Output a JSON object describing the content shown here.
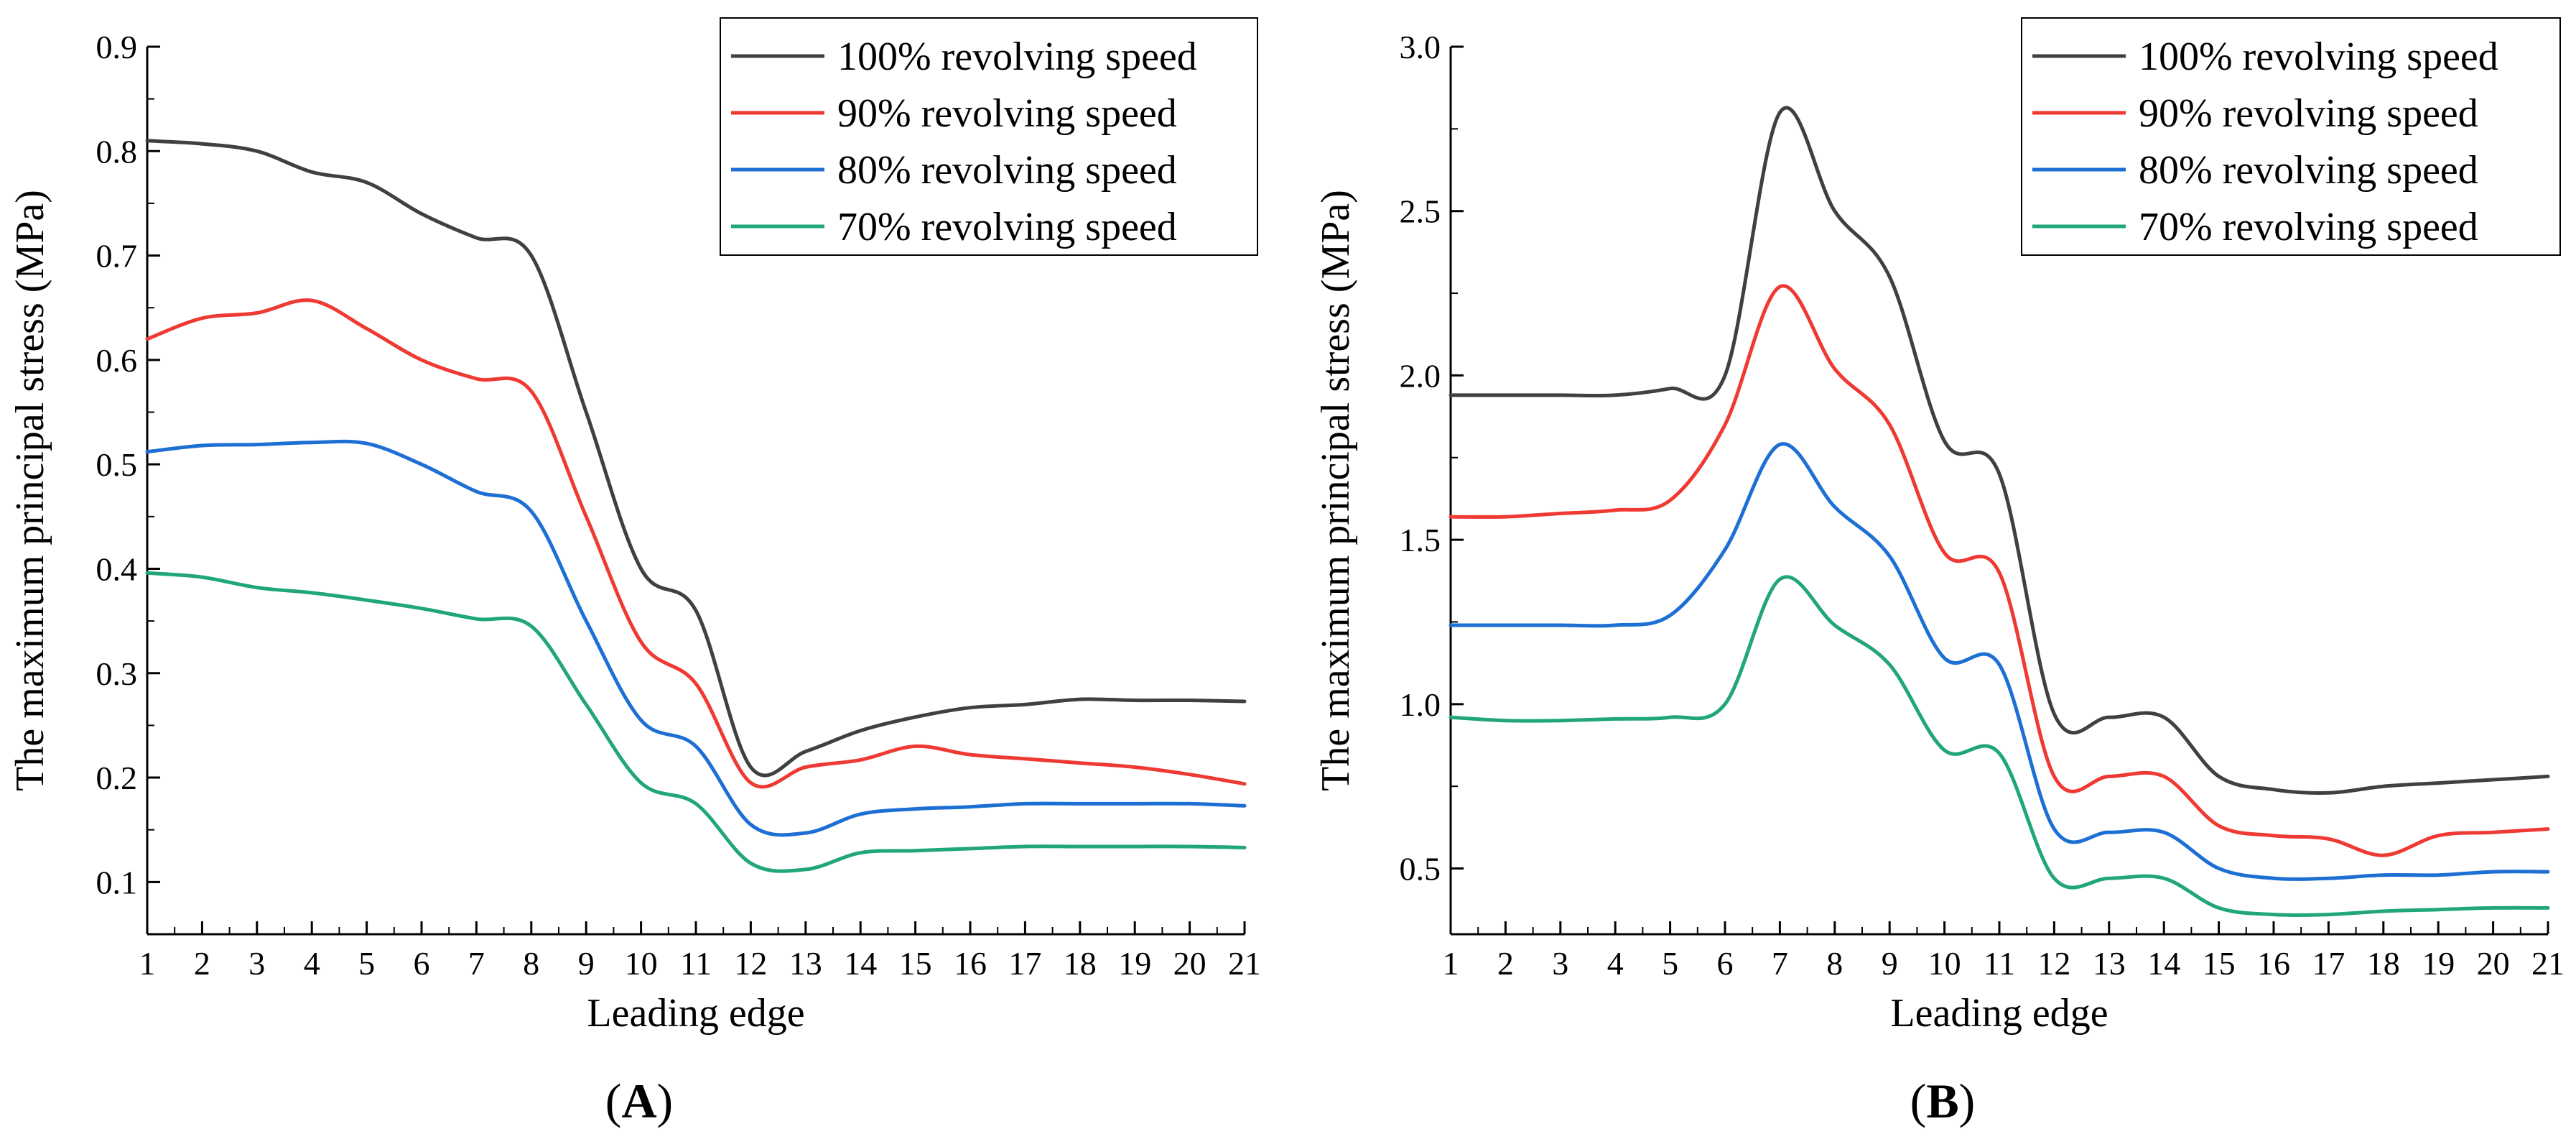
{
  "chart_data": [
    {
      "type": "line",
      "panel_label": "A",
      "xlabel": "Leading edge",
      "ylabel": "The maximum principal stress (MPa)",
      "xlim": [
        1,
        21
      ],
      "ylim": [
        0.05,
        0.9
      ],
      "x_ticks": [
        1,
        2,
        3,
        4,
        5,
        6,
        7,
        8,
        9,
        10,
        11,
        12,
        13,
        14,
        15,
        16,
        17,
        18,
        19,
        20,
        21
      ],
      "y_ticks": [
        "0.1",
        "0.2",
        "0.3",
        "0.4",
        "0.5",
        "0.6",
        "0.7",
        "0.8",
        "0.9"
      ],
      "legend_position": "top-right",
      "x": [
        1,
        2,
        3,
        4,
        5,
        6,
        7,
        8,
        9,
        10,
        11,
        12,
        13,
        14,
        15,
        16,
        17,
        18,
        19,
        20,
        21
      ],
      "series": [
        {
          "name": "100% revolving speed",
          "color": "#404040",
          "values": [
            0.81,
            0.807,
            0.8,
            0.78,
            0.77,
            0.74,
            0.717,
            0.7,
            0.55,
            0.4,
            0.36,
            0.21,
            0.225,
            0.245,
            0.258,
            0.267,
            0.27,
            0.275,
            0.274,
            0.274,
            0.273
          ]
        },
        {
          "name": "90% revolving speed",
          "color": "#ee3a33",
          "values": [
            0.62,
            0.64,
            0.645,
            0.657,
            0.63,
            0.6,
            0.582,
            0.57,
            0.45,
            0.33,
            0.29,
            0.195,
            0.21,
            0.217,
            0.23,
            0.222,
            0.218,
            0.214,
            0.21,
            0.203,
            0.194
          ]
        },
        {
          "name": "80% revolving speed",
          "color": "#1d6fd4",
          "values": [
            0.512,
            0.518,
            0.519,
            0.521,
            0.52,
            0.5,
            0.474,
            0.455,
            0.35,
            0.255,
            0.23,
            0.155,
            0.147,
            0.165,
            0.17,
            0.172,
            0.175,
            0.175,
            0.175,
            0.175,
            0.173
          ]
        },
        {
          "name": "70% revolving speed",
          "color": "#20a67a",
          "values": [
            0.396,
            0.392,
            0.382,
            0.377,
            0.37,
            0.362,
            0.352,
            0.345,
            0.27,
            0.195,
            0.175,
            0.118,
            0.112,
            0.128,
            0.13,
            0.132,
            0.134,
            0.134,
            0.134,
            0.134,
            0.133
          ]
        }
      ]
    },
    {
      "type": "line",
      "panel_label": "B",
      "xlabel": "Leading edge",
      "ylabel": "The maximum principal stress (MPa)",
      "xlim": [
        1,
        21
      ],
      "ylim": [
        0.3,
        3.0
      ],
      "x_ticks": [
        1,
        2,
        3,
        4,
        5,
        6,
        7,
        8,
        9,
        10,
        11,
        12,
        13,
        14,
        15,
        16,
        17,
        18,
        19,
        20,
        21
      ],
      "y_ticks": [
        "0.5",
        "1.0",
        "1.5",
        "2.0",
        "2.5",
        "3.0"
      ],
      "legend_position": "top-right",
      "x": [
        1,
        2,
        3,
        4,
        5,
        6,
        7,
        8,
        9,
        10,
        11,
        12,
        13,
        14,
        15,
        16,
        17,
        18,
        19,
        20,
        21
      ],
      "series": [
        {
          "name": "100% revolving speed",
          "color": "#404040",
          "values": [
            1.94,
            1.94,
            1.94,
            1.94,
            1.96,
            2.0,
            2.8,
            2.5,
            2.3,
            1.8,
            1.7,
            0.97,
            0.96,
            0.96,
            0.78,
            0.74,
            0.73,
            0.75,
            0.76,
            0.77,
            0.78
          ]
        },
        {
          "name": "90% revolving speed",
          "color": "#ee3a33",
          "values": [
            1.57,
            1.57,
            1.58,
            1.59,
            1.62,
            1.85,
            2.27,
            2.02,
            1.85,
            1.46,
            1.4,
            0.78,
            0.78,
            0.78,
            0.63,
            0.6,
            0.59,
            0.54,
            0.6,
            0.61,
            0.62
          ]
        },
        {
          "name": "80% revolving speed",
          "color": "#1d6fd4",
          "values": [
            1.24,
            1.24,
            1.24,
            1.24,
            1.27,
            1.47,
            1.79,
            1.6,
            1.45,
            1.14,
            1.12,
            0.62,
            0.61,
            0.61,
            0.5,
            0.47,
            0.47,
            0.48,
            0.48,
            0.49,
            0.49
          ]
        },
        {
          "name": "70% revolving speed",
          "color": "#20a67a",
          "values": [
            0.96,
            0.95,
            0.95,
            0.955,
            0.96,
            1.0,
            1.38,
            1.24,
            1.12,
            0.86,
            0.85,
            0.47,
            0.47,
            0.47,
            0.38,
            0.36,
            0.36,
            0.37,
            0.375,
            0.38,
            0.38
          ]
        }
      ]
    }
  ]
}
